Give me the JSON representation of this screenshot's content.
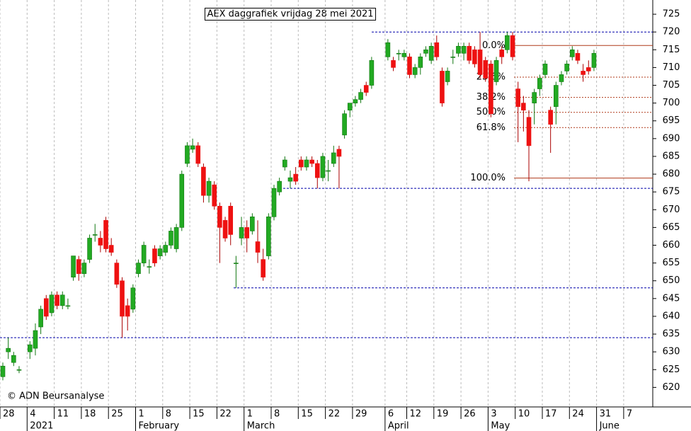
{
  "chart_data": {
    "type": "candlestick",
    "title": "AEX daggrafiek vrijdag 28 mei 2021",
    "copyright": "© ADN Beursanalyse",
    "categories": [
      "28",
      null,
      null,
      null,
      null,
      "4",
      null,
      null,
      null,
      null,
      "11",
      null,
      null,
      null,
      null,
      "18",
      null,
      null,
      null,
      null,
      "25",
      null,
      null,
      null,
      null,
      "1",
      null,
      null,
      null,
      null,
      "8",
      null,
      null,
      null,
      null,
      "15",
      null,
      null,
      null,
      null,
      "22",
      null,
      null,
      null,
      null,
      "1",
      null,
      null,
      null,
      null,
      "8",
      null,
      null,
      null,
      null,
      "15",
      null,
      null,
      null,
      null,
      "22",
      null,
      null,
      null,
      null,
      "29",
      null,
      null,
      null,
      null,
      null,
      "6",
      null,
      null,
      null,
      "12",
      null,
      null,
      null,
      null,
      "19",
      null,
      null,
      null,
      null,
      "26",
      null,
      null,
      null,
      null,
      "3",
      null,
      null,
      null,
      null,
      "10",
      null,
      null,
      null,
      null,
      "17",
      null,
      null,
      null,
      null,
      "24",
      null,
      null,
      null,
      null,
      "31",
      null,
      null,
      null,
      null,
      "7",
      null,
      null,
      null,
      null
    ],
    "month_labels": [
      null,
      null,
      null,
      null,
      null,
      "2021",
      null,
      null,
      null,
      null,
      null,
      null,
      null,
      null,
      null,
      null,
      null,
      null,
      null,
      null,
      null,
      null,
      null,
      null,
      null,
      "February",
      null,
      null,
      null,
      null,
      null,
      null,
      null,
      null,
      null,
      null,
      null,
      null,
      null,
      null,
      null,
      null,
      null,
      null,
      null,
      "March",
      null,
      null,
      null,
      null,
      null,
      null,
      null,
      null,
      null,
      null,
      null,
      null,
      null,
      null,
      null,
      null,
      null,
      null,
      null,
      null,
      null,
      null,
      null,
      null,
      null,
      "April",
      null,
      null,
      null,
      null,
      null,
      null,
      null,
      null,
      null,
      null,
      null,
      null,
      null,
      null,
      null,
      null,
      null,
      null,
      "May",
      null,
      null,
      null,
      null,
      null,
      null,
      null,
      null,
      null,
      null,
      null,
      null,
      null,
      null,
      null,
      null,
      null,
      null,
      null,
      "June",
      null,
      null,
      null,
      null,
      null,
      null,
      null,
      null,
      null
    ],
    "open": [
      623,
      630,
      627,
      625,
      null,
      630,
      631,
      637,
      645,
      641,
      646,
      643,
      643,
      651,
      656,
      652,
      656,
      663,
      662,
      667,
      660,
      655,
      650,
      643,
      642,
      652,
      655,
      654,
      659,
      657,
      658,
      660,
      659,
      665,
      683,
      687,
      688,
      682,
      674,
      677,
      671,
      667,
      671,
      655,
      662,
      665,
      664,
      661,
      656,
      657,
      668,
      675,
      682,
      678,
      680,
      684,
      682,
      684,
      683,
      679,
      681,
      683,
      687,
      691,
      698,
      700,
      701,
      705,
      705,
      null,
      null,
      713,
      712,
      714,
      713,
      713,
      708,
      710,
      714,
      712,
      717,
      709,
      706,
      713,
      714,
      714,
      716,
      715,
      715,
      712,
      711,
      706,
      715,
      715,
      719,
      704,
      700,
      696,
      700,
      704,
      708,
      698,
      699,
      706,
      709,
      713,
      714,
      709,
      710,
      710,
      null,
      null,
      null,
      null,
      null,
      null,
      null,
      null,
      null,
      null
    ],
    "high": [
      627,
      634,
      630,
      626,
      null,
      633,
      638,
      643,
      646,
      647,
      647,
      647,
      645,
      657,
      657,
      656,
      663,
      666,
      664,
      668,
      662,
      656,
      651,
      645,
      649,
      656,
      661,
      656,
      660,
      660,
      661,
      665,
      666,
      681,
      689,
      690,
      689,
      683,
      679,
      678,
      672,
      668,
      672,
      657,
      668,
      667,
      669,
      667,
      659,
      669,
      677,
      679,
      685,
      681,
      682,
      685,
      685,
      685,
      684,
      686,
      684,
      688,
      688,
      698,
      700,
      702,
      704,
      706,
      713,
      null,
      null,
      718,
      713,
      715,
      715,
      714,
      711,
      714,
      716,
      717,
      719,
      710,
      710,
      715,
      717,
      717,
      717,
      716,
      720,
      713,
      712,
      713,
      716,
      720,
      720,
      706,
      702,
      698,
      704,
      708,
      712,
      699,
      706,
      709,
      712,
      716,
      715,
      711,
      712,
      715,
      null,
      null,
      null,
      null,
      null,
      null,
      null,
      null,
      null,
      null
    ],
    "low": [
      622,
      628,
      626,
      624,
      null,
      628,
      629,
      635,
      639,
      640,
      642,
      642,
      642,
      650,
      650,
      651,
      655,
      661,
      658,
      658,
      657,
      648,
      634,
      636,
      641,
      651,
      654,
      652,
      654,
      656,
      657,
      659,
      658,
      664,
      682,
      686,
      682,
      672,
      672,
      670,
      655,
      661,
      660,
      648,
      660,
      658,
      663,
      655,
      650,
      656,
      667,
      674,
      681,
      676,
      677,
      681,
      681,
      682,
      676,
      678,
      678,
      682,
      676,
      690,
      696,
      699,
      700,
      702,
      704,
      null,
      null,
      712,
      709,
      712,
      712,
      707,
      707,
      708,
      713,
      711,
      712,
      699,
      705,
      711,
      713,
      712,
      711,
      710,
      707,
      706,
      696,
      705,
      711,
      714,
      712,
      689,
      692,
      678,
      694,
      702,
      707,
      686,
      694,
      705,
      708,
      712,
      711,
      706,
      708,
      709,
      null,
      null,
      null,
      null,
      null,
      null,
      null,
      null,
      null,
      null
    ],
    "close": [
      626,
      631,
      629,
      625,
      null,
      632,
      636,
      642,
      640,
      646,
      643,
      646,
      643,
      657,
      652,
      655,
      662,
      663,
      660,
      659,
      658,
      649,
      640,
      640,
      648,
      655,
      660,
      654,
      655,
      659,
      660,
      664,
      665,
      680,
      688,
      688,
      683,
      674,
      678,
      671,
      665,
      662,
      663,
      655,
      665,
      662,
      668,
      658,
      651,
      668,
      676,
      678,
      684,
      679,
      678,
      682,
      684,
      683,
      679,
      685,
      681,
      686,
      685,
      697,
      700,
      701,
      703,
      703,
      712,
      null,
      null,
      717,
      710,
      714,
      714,
      708,
      710,
      713,
      715,
      716,
      713,
      700,
      709,
      713,
      716,
      716,
      712,
      711,
      708,
      707,
      697,
      712,
      713,
      719,
      713,
      699,
      698,
      688,
      703,
      707,
      711,
      694,
      705,
      708,
      711,
      715,
      712,
      708,
      709,
      714,
      null,
      null,
      null,
      null,
      null,
      null,
      null,
      null,
      null,
      null
    ],
    "up_color": "#22aa22",
    "down_color": "#ee1111",
    "support_lines": [
      720,
      676,
      648,
      634
    ],
    "support_color": "#0000aa",
    "fib_levels": [
      {
        "name": "0.0%",
        "value": 716.2
      },
      {
        "name": "23.6%",
        "value": 707.3
      },
      {
        "name": "38.2%",
        "value": 701.6
      },
      {
        "name": "50.0%",
        "value": 697.4
      },
      {
        "name": "61.8%",
        "value": 693.1
      },
      {
        "name": "100.0%",
        "value": 678.9
      }
    ],
    "fib_color": "#b03a1a",
    "ylim": [
      614.5,
      729
    ],
    "yticks": [
      620,
      625,
      630,
      635,
      640,
      645,
      650,
      655,
      660,
      665,
      670,
      675,
      680,
      685,
      690,
      695,
      700,
      705,
      710,
      715,
      720,
      725
    ],
    "grid": true
  }
}
